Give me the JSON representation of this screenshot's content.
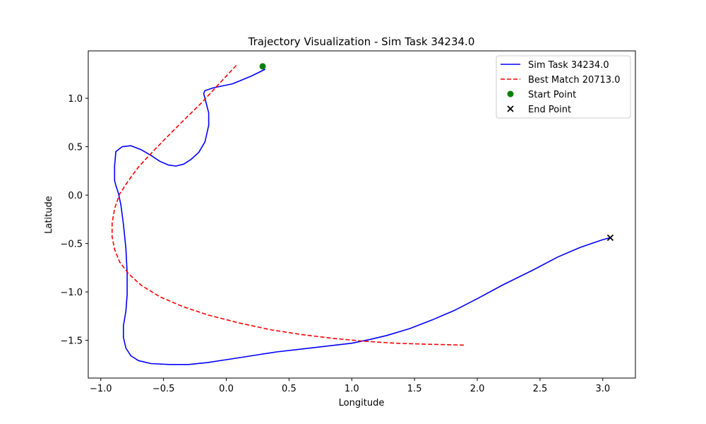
{
  "chart_data": {
    "type": "line",
    "title": "Trajectory Visualization - Sim Task 34234.0",
    "xlabel": "Longitude",
    "ylabel": "Latitude",
    "xlim": [
      -1.1,
      3.26
    ],
    "ylim": [
      -1.89,
      1.49
    ],
    "xticks": [
      -1.0,
      -0.5,
      0.0,
      0.5,
      1.0,
      1.5,
      2.0,
      2.5,
      3.0
    ],
    "xtick_labels": [
      "−1.0",
      "−0.5",
      "0.0",
      "0.5",
      "1.0",
      "1.5",
      "2.0",
      "2.5",
      "3.0"
    ],
    "yticks": [
      1.0,
      0.5,
      0.0,
      -0.5,
      -1.0,
      -1.5
    ],
    "ytick_labels": [
      "1.0",
      "0.5",
      "0.0",
      "−0.5",
      "−1.0",
      "−1.5"
    ],
    "grid": false,
    "legend_position": "top-right",
    "series": [
      {
        "name": "Sim Task 34234.0",
        "color": "#0000ff",
        "style": "solid",
        "points": [
          [
            0.31,
            1.3
          ],
          [
            0.2,
            1.23
          ],
          [
            0.05,
            1.15
          ],
          [
            -0.1,
            1.11
          ],
          [
            -0.17,
            1.08
          ],
          [
            -0.18,
            1.05
          ],
          [
            -0.16,
            0.95
          ],
          [
            -0.14,
            0.85
          ],
          [
            -0.14,
            0.72
          ],
          [
            -0.17,
            0.55
          ],
          [
            -0.22,
            0.44
          ],
          [
            -0.28,
            0.37
          ],
          [
            -0.34,
            0.32
          ],
          [
            -0.4,
            0.3
          ],
          [
            -0.46,
            0.31
          ],
          [
            -0.53,
            0.35
          ],
          [
            -0.6,
            0.41
          ],
          [
            -0.68,
            0.47
          ],
          [
            -0.76,
            0.51
          ],
          [
            -0.83,
            0.5
          ],
          [
            -0.88,
            0.45
          ],
          [
            -0.89,
            0.3
          ],
          [
            -0.89,
            0.15
          ],
          [
            -0.88,
            0.1
          ],
          [
            -0.86,
            0.02
          ],
          [
            -0.84,
            -0.1
          ],
          [
            -0.82,
            -0.3
          ],
          [
            -0.8,
            -0.55
          ],
          [
            -0.79,
            -0.8
          ],
          [
            -0.79,
            -1.03
          ],
          [
            -0.8,
            -1.2
          ],
          [
            -0.82,
            -1.35
          ],
          [
            -0.82,
            -1.47
          ],
          [
            -0.8,
            -1.58
          ],
          [
            -0.76,
            -1.66
          ],
          [
            -0.7,
            -1.71
          ],
          [
            -0.6,
            -1.74
          ],
          [
            -0.45,
            -1.75
          ],
          [
            -0.3,
            -1.75
          ],
          [
            -0.15,
            -1.73
          ],
          [
            0.0,
            -1.7
          ],
          [
            0.2,
            -1.66
          ],
          [
            0.4,
            -1.62
          ],
          [
            0.6,
            -1.59
          ],
          [
            0.8,
            -1.56
          ],
          [
            1.0,
            -1.53
          ],
          [
            1.15,
            -1.49
          ],
          [
            1.28,
            -1.45
          ],
          [
            1.46,
            -1.38
          ],
          [
            1.64,
            -1.29
          ],
          [
            1.82,
            -1.19
          ],
          [
            2.0,
            -1.07
          ],
          [
            2.2,
            -0.93
          ],
          [
            2.45,
            -0.77
          ],
          [
            2.64,
            -0.64
          ],
          [
            2.82,
            -0.54
          ],
          [
            3.0,
            -0.46
          ],
          [
            3.06,
            -0.44
          ]
        ]
      },
      {
        "name": "Best Match 20713.0",
        "color": "#ff0000",
        "style": "dashed",
        "points": [
          [
            0.08,
            1.34
          ],
          [
            -0.05,
            1.16
          ],
          [
            -0.2,
            0.95
          ],
          [
            -0.35,
            0.76
          ],
          [
            -0.48,
            0.59
          ],
          [
            -0.6,
            0.43
          ],
          [
            -0.7,
            0.29
          ],
          [
            -0.78,
            0.15
          ],
          [
            -0.85,
            0.01
          ],
          [
            -0.89,
            -0.14
          ],
          [
            -0.91,
            -0.29
          ],
          [
            -0.91,
            -0.43
          ],
          [
            -0.89,
            -0.56
          ],
          [
            -0.85,
            -0.69
          ],
          [
            -0.78,
            -0.81
          ],
          [
            -0.68,
            -0.93
          ],
          [
            -0.53,
            -1.05
          ],
          [
            -0.35,
            -1.15
          ],
          [
            -0.14,
            -1.24
          ],
          [
            0.1,
            -1.32
          ],
          [
            0.35,
            -1.39
          ],
          [
            0.6,
            -1.44
          ],
          [
            0.85,
            -1.48
          ],
          [
            1.1,
            -1.51
          ],
          [
            1.35,
            -1.53
          ],
          [
            1.6,
            -1.54
          ],
          [
            1.9,
            -1.55
          ]
        ]
      }
    ],
    "markers": [
      {
        "name": "Start Point",
        "x": 0.29,
        "y": 1.33,
        "color": "#008000",
        "shape": "circle"
      },
      {
        "name": "End Point",
        "x": 3.06,
        "y": -0.44,
        "color": "#000000",
        "shape": "x"
      }
    ]
  }
}
